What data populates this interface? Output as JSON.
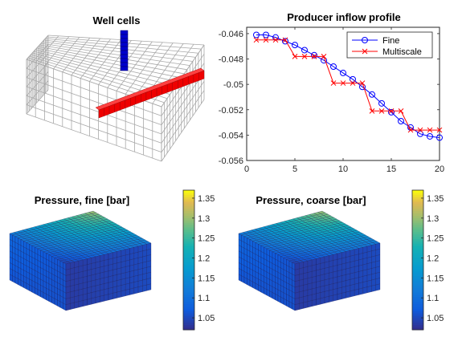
{
  "panels": {
    "well_cells": {
      "title": "Well cells"
    },
    "pressure_fine": {
      "title": "Pressure, fine [bar]"
    },
    "pressure_coarse": {
      "title": "Pressure, coarse [bar]"
    }
  },
  "chart_data": [
    {
      "type": "line",
      "title": "Producer inflow profile",
      "xlabel": "",
      "ylabel": "",
      "xlim": [
        0,
        20
      ],
      "ylim": [
        -0.056,
        -0.0455
      ],
      "xticks": [
        0,
        5,
        10,
        15,
        20
      ],
      "yticks": [
        -0.056,
        -0.054,
        -0.052,
        -0.05,
        -0.048,
        -0.046
      ],
      "ytick_labels": [
        "-0.056",
        "-0.054",
        "-0.052",
        "-0.05",
        "-0.048",
        "-0.046"
      ],
      "legend_position": "top-right",
      "grid": false,
      "x": [
        1,
        2,
        3,
        4,
        5,
        6,
        7,
        8,
        9,
        10,
        11,
        12,
        13,
        14,
        15,
        16,
        17,
        18,
        19,
        20
      ],
      "series": [
        {
          "name": "Fine",
          "color": "#0000ff",
          "marker": "circle",
          "values": [
            -0.0461,
            -0.0461,
            -0.0463,
            -0.0466,
            -0.0469,
            -0.0473,
            -0.0477,
            -0.0481,
            -0.0486,
            -0.0491,
            -0.0496,
            -0.0502,
            -0.0508,
            -0.0515,
            -0.0522,
            -0.0529,
            -0.0534,
            -0.0539,
            -0.0541,
            -0.0542
          ]
        },
        {
          "name": "Multiscale",
          "color": "#ff0000",
          "marker": "x",
          "values": [
            -0.0465,
            -0.0465,
            -0.0465,
            -0.0465,
            -0.0478,
            -0.0478,
            -0.0478,
            -0.0478,
            -0.0499,
            -0.0499,
            -0.0499,
            -0.0499,
            -0.0521,
            -0.0521,
            -0.0521,
            -0.0521,
            -0.0536,
            -0.0536,
            -0.0536,
            -0.0536
          ]
        }
      ]
    },
    {
      "type": "heatmap",
      "colorbar_ticks": [
        "1.35",
        "1.3",
        "1.25",
        "1.2",
        "1.15",
        "1.1",
        "1.05"
      ],
      "colorbar_range": [
        1.02,
        1.37
      ]
    },
    {
      "type": "heatmap",
      "colorbar_ticks": [
        "1.35",
        "1.3",
        "1.25",
        "1.2",
        "1.15",
        "1.1",
        "1.05"
      ],
      "colorbar_range": [
        1.02,
        1.37
      ]
    }
  ],
  "colors": {
    "injector": "#0000cc",
    "producer": "#ee0000",
    "grid": "#a8a8a8"
  }
}
